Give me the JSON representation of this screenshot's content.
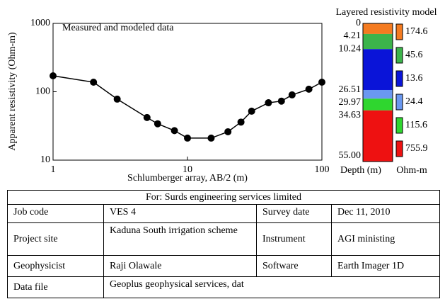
{
  "chart_data": {
    "type": "line",
    "annotation": "Measured and modeled data",
    "x_label": "Schlumberger array, AB/2 (m)",
    "y_label": "Apparent resistivity (Ohm-m)",
    "x": [
      1,
      2,
      3,
      5,
      6,
      8,
      10,
      15,
      20,
      25,
      30,
      40,
      50,
      60,
      80,
      100
    ],
    "series": [
      {
        "color": "#000000",
        "values": [
          171,
          138,
          78,
          42,
          34,
          27,
          21,
          21,
          26,
          36,
          52,
          69,
          73,
          90,
          109,
          138
        ]
      }
    ],
    "xlim": [
      1,
      100
    ],
    "ylim": [
      10,
      1000
    ],
    "xticks": [
      1,
      10,
      100
    ],
    "yticks": [
      10,
      100,
      1000
    ],
    "log_x": true,
    "log_y": true
  },
  "layer_model": {
    "title": "Layered resistivity model",
    "depth_label": "Depth (m)",
    "resistivity_label": "Ohm-m",
    "depths": [
      0,
      4.21,
      10.24,
      26.51,
      29.97,
      34.63,
      {
        "value": 55,
        "label": "55.00"
      }
    ],
    "depth_lim": [
      0,
      55
    ],
    "layers": [
      {
        "resistivity": 174.6,
        "color": "#f47b20"
      },
      {
        "resistivity": 45.6,
        "color": "#3cb44b"
      },
      {
        "resistivity": 13.6,
        "color": "#0a14d8"
      },
      {
        "resistivity": 24.4,
        "color": "#6a98f0"
      },
      {
        "resistivity": 115.6,
        "color": "#2fd62f"
      },
      {
        "resistivity": 755.9,
        "color": "#ee1111"
      }
    ]
  },
  "table": {
    "header": "For: Surds engineering services limited",
    "rows": [
      [
        "Job code",
        "VES 4",
        "Survey date",
        "Dec 11, 2010"
      ],
      [
        "Project site",
        "Kaduna South irrigation scheme",
        "Instrument",
        "AGI ministing"
      ],
      [
        "Geophysicist",
        "Raji Olawale",
        "Software",
        "Earth Imager 1D"
      ],
      [
        "Data file",
        "Geoplus geophysical services, dat"
      ]
    ]
  }
}
